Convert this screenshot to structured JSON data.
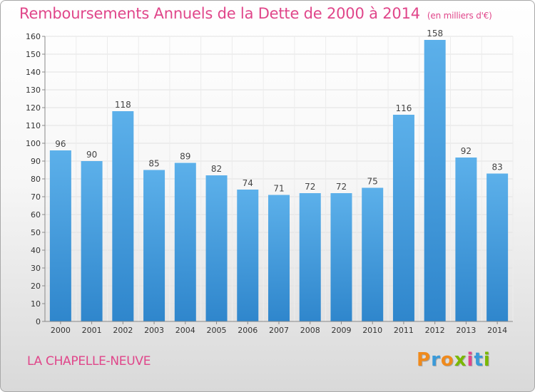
{
  "title": "Remboursements Annuels de la Dette de 2000 à 2014",
  "subtitle": "(en milliers d'€)",
  "location": "LA CHAPELLE-NEUVE",
  "logo": {
    "letters": [
      "P",
      "r",
      "o",
      "x",
      "i",
      "t",
      "i"
    ],
    "colors": [
      "#f08a1c",
      "#3a9ad9",
      "#f08a1c",
      "#7ab800",
      "#e0468a",
      "#3a9ad9",
      "#7ab800"
    ]
  },
  "colors": {
    "bar": "#3d97dc",
    "bar_light": "#5cb0ea",
    "title": "#e0468a"
  },
  "chart_data": {
    "type": "bar",
    "categories": [
      "2000",
      "2001",
      "2002",
      "2003",
      "2004",
      "2005",
      "2006",
      "2007",
      "2008",
      "2009",
      "2010",
      "2011",
      "2012",
      "2013",
      "2014"
    ],
    "values": [
      96,
      90,
      118,
      85,
      89,
      82,
      74,
      71,
      72,
      72,
      75,
      116,
      158,
      92,
      83
    ],
    "title": "Remboursements Annuels de la Dette de 2000 à 2014",
    "xlabel": "",
    "ylabel": "",
    "ylim": [
      0,
      160
    ],
    "yticks": [
      0,
      10,
      20,
      30,
      40,
      50,
      60,
      70,
      80,
      90,
      100,
      110,
      120,
      130,
      140,
      150,
      160
    ],
    "grid": true,
    "data_labels": true
  }
}
